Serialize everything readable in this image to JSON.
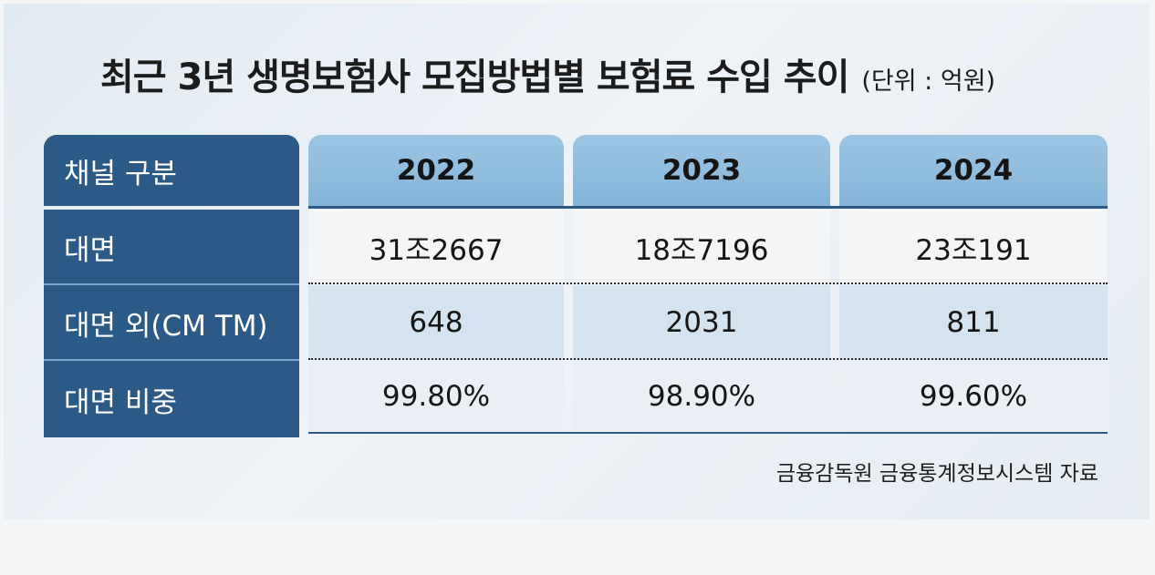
{
  "chart_data": {
    "type": "table",
    "title": "최근 3년 생명보험사 모집방법별 보험료 수입 추이",
    "unit": "(단위 : 억원)",
    "header_label": "채널 구분",
    "columns": [
      "2022",
      "2023",
      "2024"
    ],
    "rows": [
      {
        "label": "대면",
        "values": [
          "31조2667",
          "18조7196",
          "23조191"
        ]
      },
      {
        "label": "대면 외(CM TM)",
        "values": [
          "648",
          "2031",
          "811"
        ]
      },
      {
        "label": "대면 비중",
        "values": [
          "99.80%",
          "98.90%",
          "99.60%"
        ]
      }
    ],
    "source": "금융감독원 금융통계정보시스템 자료"
  },
  "colors": {
    "header_dark": "#2b5a86",
    "header_light": "#8fbce0",
    "row_alt": "#d4e3ef",
    "background": "#e5ecf2"
  }
}
